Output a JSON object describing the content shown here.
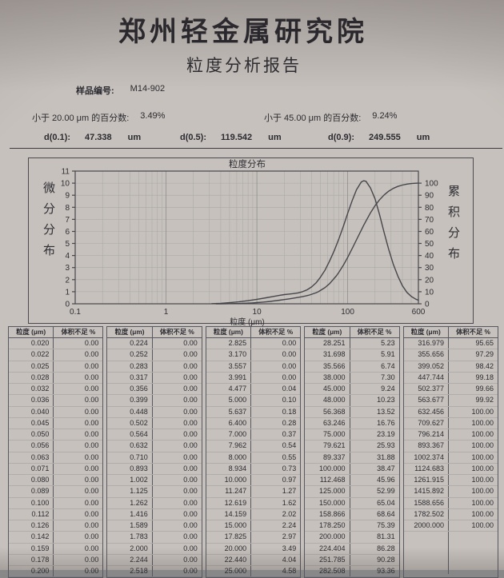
{
  "header": {
    "institute": "郑州轻金属研究院",
    "report_title": "粒度分析报告"
  },
  "sample": {
    "label": "样品编号:",
    "id": "M14-902"
  },
  "stats": {
    "lt20": {
      "label": "小于 20.00 μm 的百分数:",
      "value": "3.49%"
    },
    "lt45": {
      "label": "小于 45.00 μm 的百分数:",
      "value": "9.24%"
    }
  },
  "dvalues": {
    "d01": {
      "label": "d(0.1):",
      "value": "47.338",
      "unit": "um"
    },
    "d05": {
      "label": "d(0.5):",
      "value": "119.542",
      "unit": "um"
    },
    "d09": {
      "label": "d(0.9):",
      "value": "249.555",
      "unit": "um"
    }
  },
  "chart_data": {
    "type": "line",
    "title": "粒度分布",
    "xlabel": "粒度 (μm)",
    "ylabel_left": "微分分布",
    "ylabel_right": "累积分布",
    "x_scale": "log",
    "xlim": [
      0.1,
      600
    ],
    "ylim_left": [
      0,
      11
    ],
    "ylim_right": [
      0,
      110
    ],
    "x_ticks": [
      0.1,
      1,
      10,
      100,
      600
    ],
    "y_ticks_left": [
      0,
      1,
      2,
      3,
      4,
      5,
      6,
      7,
      8,
      9,
      10,
      11
    ],
    "y_ticks_right": [
      0,
      10,
      20,
      30,
      40,
      50,
      60,
      70,
      80,
      90,
      100
    ],
    "grid": true,
    "series": [
      {
        "name": "微分分布",
        "axis": "left",
        "estimated": true,
        "points": [
          [
            3.2,
            0.01
          ],
          [
            4,
            0.04
          ],
          [
            5,
            0.09
          ],
          [
            6.3,
            0.16
          ],
          [
            8,
            0.26
          ],
          [
            10,
            0.37
          ],
          [
            12.6,
            0.5
          ],
          [
            15,
            0.6
          ],
          [
            17.8,
            0.7
          ],
          [
            20,
            0.76
          ],
          [
            22.4,
            0.8
          ],
          [
            25,
            0.84
          ],
          [
            28.3,
            0.9
          ],
          [
            31.7,
            1.0
          ],
          [
            35.6,
            1.15
          ],
          [
            40,
            1.4
          ],
          [
            45,
            1.75
          ],
          [
            50,
            2.2
          ],
          [
            56.4,
            2.8
          ],
          [
            63.2,
            3.55
          ],
          [
            71,
            4.4
          ],
          [
            79.6,
            5.35
          ],
          [
            89.3,
            6.4
          ],
          [
            100,
            7.5
          ],
          [
            112.5,
            8.6
          ],
          [
            125,
            9.45
          ],
          [
            141,
            10.1
          ],
          [
            150,
            10.2
          ],
          [
            159,
            10.15
          ],
          [
            178,
            9.6
          ],
          [
            200,
            8.7
          ],
          [
            224,
            7.4
          ],
          [
            252,
            5.9
          ],
          [
            283,
            4.5
          ],
          [
            317,
            3.3
          ],
          [
            356,
            2.3
          ],
          [
            400,
            1.5
          ],
          [
            448,
            0.95
          ],
          [
            502,
            0.6
          ],
          [
            564,
            0.38
          ],
          [
            600,
            0.3
          ]
        ]
      },
      {
        "name": "累积分布",
        "axis": "right",
        "estimated": false,
        "points": [
          [
            3.557,
            0
          ],
          [
            3.991,
            0
          ],
          [
            4.477,
            0.04
          ],
          [
            5.0,
            0.1
          ],
          [
            5.637,
            0.18
          ],
          [
            6.4,
            0.28
          ],
          [
            7.0,
            0.37
          ],
          [
            7.962,
            0.54
          ],
          [
            8.0,
            0.55
          ],
          [
            8.934,
            0.73
          ],
          [
            10.0,
            0.97
          ],
          [
            11.247,
            1.27
          ],
          [
            12.619,
            1.62
          ],
          [
            14.159,
            2.02
          ],
          [
            15.0,
            2.24
          ],
          [
            17.825,
            2.97
          ],
          [
            20.0,
            3.49
          ],
          [
            22.44,
            4.04
          ],
          [
            25.0,
            4.58
          ],
          [
            28.251,
            5.23
          ],
          [
            31.698,
            5.91
          ],
          [
            35.566,
            6.74
          ],
          [
            38.0,
            7.3
          ],
          [
            45.0,
            9.24
          ],
          [
            48.0,
            10.23
          ],
          [
            56.368,
            13.52
          ],
          [
            63.246,
            16.76
          ],
          [
            75.0,
            23.19
          ],
          [
            79.621,
            25.93
          ],
          [
            89.337,
            31.88
          ],
          [
            100.0,
            38.47
          ],
          [
            112.468,
            45.96
          ],
          [
            125.0,
            52.99
          ],
          [
            150.0,
            65.04
          ],
          [
            158.866,
            68.64
          ],
          [
            178.25,
            75.39
          ],
          [
            200.0,
            81.31
          ],
          [
            224.404,
            86.28
          ],
          [
            251.785,
            90.28
          ],
          [
            282.508,
            93.36
          ],
          [
            316.979,
            95.65
          ],
          [
            355.656,
            97.29
          ],
          [
            399.052,
            98.42
          ],
          [
            447.744,
            99.18
          ],
          [
            502.377,
            99.66
          ],
          [
            563.677,
            99.92
          ],
          [
            600,
            99.98
          ]
        ]
      }
    ]
  },
  "table": {
    "headers": [
      "粒度 (μm)",
      "体积不足 %"
    ],
    "groups": [
      {
        "rows": [
          [
            "0.020",
            "0.00"
          ],
          [
            "0.022",
            "0.00"
          ],
          [
            "0.025",
            "0.00"
          ],
          [
            "0.028",
            "0.00"
          ],
          [
            "0.032",
            "0.00"
          ],
          [
            "0.036",
            "0.00"
          ],
          [
            "0.040",
            "0.00"
          ],
          [
            "0.045",
            "0.00"
          ],
          [
            "0.050",
            "0.00"
          ],
          [
            "0.056",
            "0.00"
          ],
          [
            "0.063",
            "0.00"
          ],
          [
            "0.071",
            "0.00"
          ],
          [
            "0.080",
            "0.00"
          ],
          [
            "0.089",
            "0.00"
          ],
          [
            "0.100",
            "0.00"
          ],
          [
            "0.112",
            "0.00"
          ],
          [
            "0.126",
            "0.00"
          ],
          [
            "0.142",
            "0.00"
          ],
          [
            "0.159",
            "0.00"
          ],
          [
            "0.178",
            "0.00"
          ],
          [
            "0.200",
            "0.00"
          ]
        ],
        "pad_rows": 0
      },
      {
        "rows": [
          [
            "0.224",
            "0.00"
          ],
          [
            "0.252",
            "0.00"
          ],
          [
            "0.283",
            "0.00"
          ],
          [
            "0.317",
            "0.00"
          ],
          [
            "0.356",
            "0.00"
          ],
          [
            "0.399",
            "0.00"
          ],
          [
            "0.448",
            "0.00"
          ],
          [
            "0.502",
            "0.00"
          ],
          [
            "0.564",
            "0.00"
          ],
          [
            "0.632",
            "0.00"
          ],
          [
            "0.710",
            "0.00"
          ],
          [
            "0.893",
            "0.00"
          ],
          [
            "1.002",
            "0.00"
          ],
          [
            "1.125",
            "0.00"
          ],
          [
            "1.262",
            "0.00"
          ],
          [
            "1.416",
            "0.00"
          ],
          [
            "1.589",
            "0.00"
          ],
          [
            "1.783",
            "0.00"
          ],
          [
            "2.000",
            "0.00"
          ],
          [
            "2.244",
            "0.00"
          ],
          [
            "2.518",
            "0.00"
          ]
        ],
        "pad_rows": 0
      },
      {
        "rows": [
          [
            "2.825",
            "0.00"
          ],
          [
            "3.170",
            "0.00"
          ],
          [
            "3.557",
            "0.00"
          ],
          [
            "3.991",
            "0.00"
          ],
          [
            "4.477",
            "0.04"
          ],
          [
            "5.000",
            "0.10"
          ],
          [
            "5.637",
            "0.18"
          ],
          [
            "6.400",
            "0.28"
          ],
          [
            "7.000",
            "0.37"
          ],
          [
            "7.962",
            "0.54"
          ],
          [
            "8.000",
            "0.55"
          ],
          [
            "8.934",
            "0.73"
          ],
          [
            "10.000",
            "0.97"
          ],
          [
            "11.247",
            "1.27"
          ],
          [
            "12.619",
            "1.62"
          ],
          [
            "14.159",
            "2.02"
          ],
          [
            "15.000",
            "2.24"
          ],
          [
            "17.825",
            "2.97"
          ],
          [
            "20.000",
            "3.49"
          ],
          [
            "22.440",
            "4.04"
          ],
          [
            "25.000",
            "4.58"
          ]
        ],
        "pad_rows": 0
      },
      {
        "rows": [
          [
            "28.251",
            "5.23"
          ],
          [
            "31.698",
            "5.91"
          ],
          [
            "35.566",
            "6.74"
          ],
          [
            "38.000",
            "7.30"
          ],
          [
            "45.000",
            "9.24"
          ],
          [
            "48.000",
            "10.23"
          ],
          [
            "56.368",
            "13.52"
          ],
          [
            "63.246",
            "16.76"
          ],
          [
            "75.000",
            "23.19"
          ],
          [
            "79.621",
            "25.93"
          ],
          [
            "89.337",
            "31.88"
          ],
          [
            "100.000",
            "38.47"
          ],
          [
            "112.468",
            "45.96"
          ],
          [
            "125.000",
            "52.99"
          ],
          [
            "150.000",
            "65.04"
          ],
          [
            "158.866",
            "68.64"
          ],
          [
            "178.250",
            "75.39"
          ],
          [
            "200.000",
            "81.31"
          ],
          [
            "224.404",
            "86.28"
          ],
          [
            "251.785",
            "90.28"
          ],
          [
            "282.508",
            "93.36"
          ]
        ],
        "pad_rows": 0
      },
      {
        "rows": [
          [
            "316.979",
            "95.65"
          ],
          [
            "355.656",
            "97.29"
          ],
          [
            "399.052",
            "98.42"
          ],
          [
            "447.744",
            "99.18"
          ],
          [
            "502.377",
            "99.66"
          ],
          [
            "563.677",
            "99.92"
          ],
          [
            "632.456",
            "100.00"
          ],
          [
            "709.627",
            "100.00"
          ],
          [
            "796.214",
            "100.00"
          ],
          [
            "893.367",
            "100.00"
          ],
          [
            "1002.374",
            "100.00"
          ],
          [
            "1124.683",
            "100.00"
          ],
          [
            "1261.915",
            "100.00"
          ],
          [
            "1415.892",
            "100.00"
          ],
          [
            "1588.656",
            "100.00"
          ],
          [
            "1782.502",
            "100.00"
          ],
          [
            "2000.000",
            "100.00"
          ]
        ],
        "pad_rows": 4
      }
    ]
  },
  "colors": {
    "paper": "#c6c1bc",
    "ink": "#2b2b31",
    "line": "#45454b",
    "grid": "#a9a9a4"
  }
}
